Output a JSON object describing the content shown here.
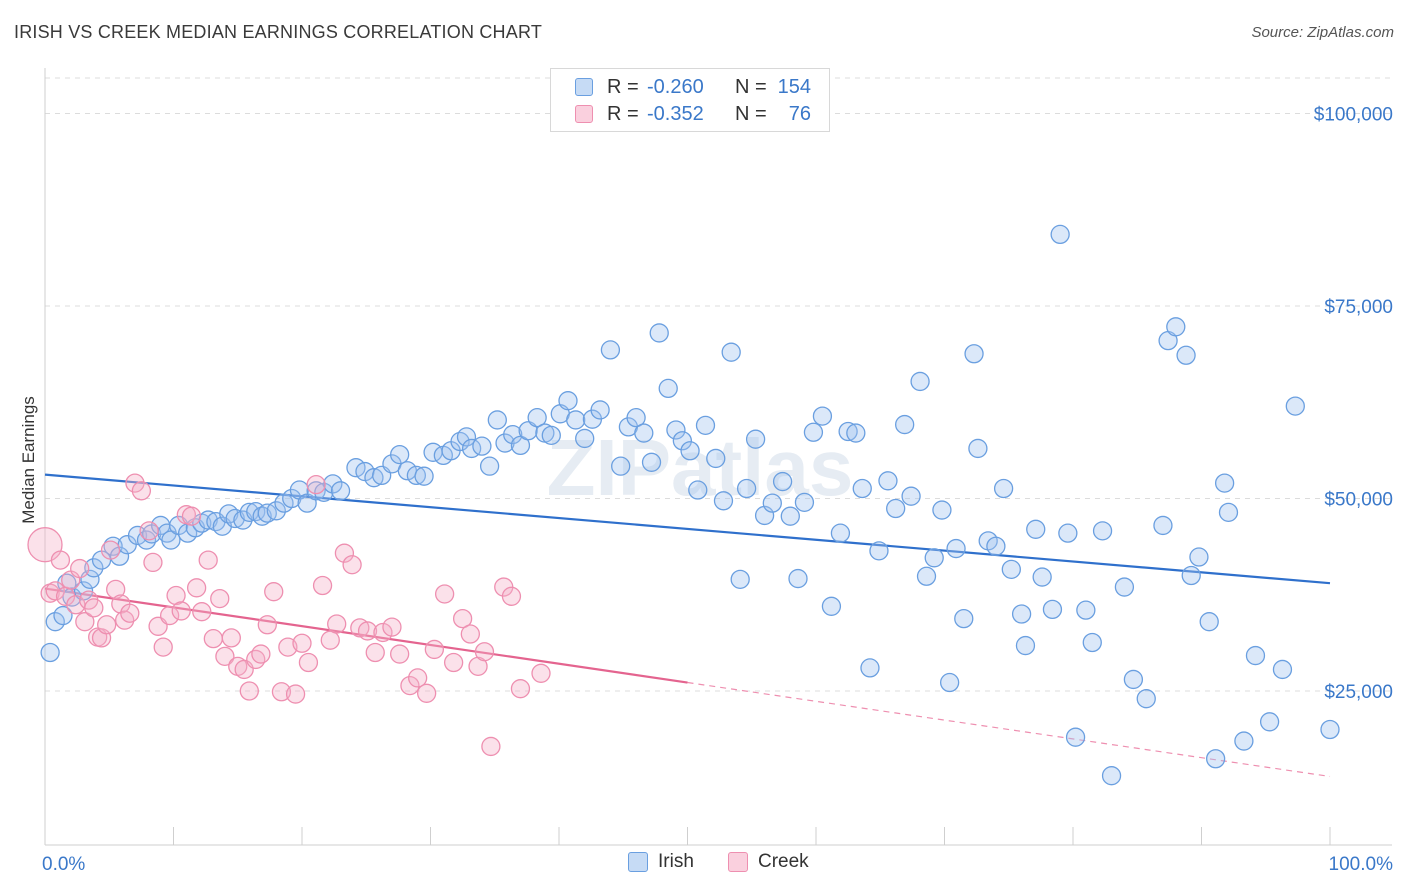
{
  "header": {
    "title": "IRISH VS CREEK MEDIAN EARNINGS CORRELATION CHART",
    "source": "Source: ZipAtlas.com"
  },
  "watermark": "ZIPatlas",
  "legend": {
    "rows": [
      {
        "r_label": "R =",
        "r_value": "-0.260",
        "n_label": "N =",
        "n_value": "154",
        "color": "#6a9fe0"
      },
      {
        "r_label": "R =",
        "r_value": "-0.352",
        "n_label": "N =",
        "n_value": "76",
        "color": "#ee8fb0"
      }
    ]
  },
  "bottom_legend": [
    {
      "label": "Irish",
      "color": "#6a9fe0"
    },
    {
      "label": "Creek",
      "color": "#ee8fb0"
    }
  ],
  "chart_data": {
    "type": "scatter",
    "title": "IRISH VS CREEK MEDIAN EARNINGS CORRELATION CHART",
    "ylabel": "Median Earnings",
    "xlabel": "",
    "xlim": [
      0,
      100
    ],
    "ylim": [
      5000,
      105000
    ],
    "x_tick_labels": [
      "0.0%",
      "100.0%"
    ],
    "y_ticks": [
      {
        "value": 25000,
        "label": "$25,000"
      },
      {
        "value": 50000,
        "label": "$50,000"
      },
      {
        "value": 75000,
        "label": "$75,000"
      },
      {
        "value": 100000,
        "label": "$100,000"
      }
    ],
    "grid": true,
    "legend_position": "top-center",
    "series": [
      {
        "name": "Irish",
        "color": "#6a9fe0",
        "trend": {
          "x": [
            0,
            100
          ],
          "y": [
            53100,
            39000
          ],
          "dashed_from": null
        },
        "points": [
          [
            0.4,
            30000
          ],
          [
            0.8,
            34000
          ],
          [
            1.4,
            34800
          ],
          [
            1.7,
            39000
          ],
          [
            2.1,
            37200
          ],
          [
            3.0,
            38000
          ],
          [
            3.5,
            39500
          ],
          [
            3.8,
            41000
          ],
          [
            4.4,
            42000
          ],
          [
            5.3,
            43800
          ],
          [
            5.8,
            42500
          ],
          [
            6.4,
            44000
          ],
          [
            7.2,
            45200
          ],
          [
            7.9,
            44600
          ],
          [
            8.3,
            45400
          ],
          [
            9.0,
            46500
          ],
          [
            9.5,
            45500
          ],
          [
            9.8,
            44600
          ],
          [
            10.4,
            46500
          ],
          [
            11.1,
            45500
          ],
          [
            11.7,
            46200
          ],
          [
            12.2,
            46800
          ],
          [
            12.7,
            47200
          ],
          [
            13.3,
            47000
          ],
          [
            13.8,
            46400
          ],
          [
            14.3,
            48000
          ],
          [
            14.8,
            47400
          ],
          [
            15.4,
            47200
          ],
          [
            15.9,
            48200
          ],
          [
            16.4,
            48300
          ],
          [
            16.9,
            47700
          ],
          [
            17.3,
            48100
          ],
          [
            18.0,
            48400
          ],
          [
            18.6,
            49400
          ],
          [
            19.2,
            50000
          ],
          [
            19.8,
            51100
          ],
          [
            20.4,
            49400
          ],
          [
            21.1,
            51000
          ],
          [
            21.7,
            50800
          ],
          [
            22.4,
            51900
          ],
          [
            23.0,
            51000
          ],
          [
            24.2,
            54000
          ],
          [
            24.9,
            53500
          ],
          [
            25.6,
            52700
          ],
          [
            26.2,
            53000
          ],
          [
            27.0,
            54500
          ],
          [
            27.6,
            55700
          ],
          [
            28.2,
            53600
          ],
          [
            28.9,
            53000
          ],
          [
            29.5,
            52900
          ],
          [
            30.2,
            56000
          ],
          [
            31.0,
            55600
          ],
          [
            31.6,
            56200
          ],
          [
            32.3,
            57400
          ],
          [
            32.8,
            58000
          ],
          [
            33.2,
            56500
          ],
          [
            34.0,
            56800
          ],
          [
            34.6,
            54200
          ],
          [
            35.2,
            60200
          ],
          [
            35.8,
            57200
          ],
          [
            36.4,
            58300
          ],
          [
            37.0,
            56900
          ],
          [
            37.6,
            58800
          ],
          [
            38.3,
            60500
          ],
          [
            38.9,
            58500
          ],
          [
            39.4,
            58200
          ],
          [
            40.1,
            61000
          ],
          [
            40.7,
            62700
          ],
          [
            41.3,
            60200
          ],
          [
            42.0,
            57800
          ],
          [
            42.6,
            60300
          ],
          [
            43.2,
            61500
          ],
          [
            44.0,
            69300
          ],
          [
            44.8,
            54200
          ],
          [
            45.4,
            59300
          ],
          [
            46.0,
            60500
          ],
          [
            46.6,
            58500
          ],
          [
            47.2,
            54700
          ],
          [
            47.8,
            71500
          ],
          [
            48.5,
            64300
          ],
          [
            49.1,
            58900
          ],
          [
            49.6,
            57500
          ],
          [
            50.2,
            56200
          ],
          [
            50.8,
            51100
          ],
          [
            51.4,
            59500
          ],
          [
            52.2,
            55200
          ],
          [
            52.8,
            49700
          ],
          [
            53.4,
            69000
          ],
          [
            54.1,
            39500
          ],
          [
            54.6,
            51300
          ],
          [
            55.3,
            57700
          ],
          [
            56.0,
            47800
          ],
          [
            56.6,
            49400
          ],
          [
            57.4,
            52200
          ],
          [
            58.0,
            47700
          ],
          [
            58.6,
            39600
          ],
          [
            59.1,
            49500
          ],
          [
            59.8,
            58600
          ],
          [
            60.5,
            60700
          ],
          [
            61.2,
            36000
          ],
          [
            61.9,
            45500
          ],
          [
            62.5,
            58700
          ],
          [
            63.1,
            58500
          ],
          [
            63.6,
            51300
          ],
          [
            64.2,
            28000
          ],
          [
            64.9,
            43200
          ],
          [
            65.6,
            52300
          ],
          [
            66.2,
            48700
          ],
          [
            66.9,
            59600
          ],
          [
            67.4,
            50300
          ],
          [
            68.1,
            65200
          ],
          [
            68.6,
            39900
          ],
          [
            69.2,
            42300
          ],
          [
            69.8,
            48500
          ],
          [
            70.4,
            26100
          ],
          [
            70.9,
            43500
          ],
          [
            71.5,
            34400
          ],
          [
            72.3,
            68800
          ],
          [
            72.6,
            56500
          ],
          [
            73.4,
            44500
          ],
          [
            74.0,
            43800
          ],
          [
            74.6,
            51300
          ],
          [
            75.2,
            40800
          ],
          [
            76.0,
            35000
          ],
          [
            76.3,
            30900
          ],
          [
            77.1,
            46000
          ],
          [
            77.6,
            39800
          ],
          [
            78.4,
            35600
          ],
          [
            79.0,
            84300
          ],
          [
            79.6,
            45500
          ],
          [
            80.2,
            19000
          ],
          [
            81.0,
            35500
          ],
          [
            81.5,
            31300
          ],
          [
            82.3,
            45800
          ],
          [
            83.0,
            14000
          ],
          [
            84.0,
            38500
          ],
          [
            84.7,
            26500
          ],
          [
            85.7,
            24000
          ],
          [
            87.0,
            46500
          ],
          [
            87.4,
            70500
          ],
          [
            88.0,
            72300
          ],
          [
            88.8,
            68600
          ],
          [
            89.2,
            40000
          ],
          [
            89.8,
            42400
          ],
          [
            90.6,
            34000
          ],
          [
            91.1,
            16200
          ],
          [
            91.8,
            52000
          ],
          [
            92.1,
            48200
          ],
          [
            93.3,
            18500
          ],
          [
            94.2,
            29600
          ],
          [
            95.3,
            21000
          ],
          [
            96.3,
            27800
          ],
          [
            97.3,
            62000
          ],
          [
            100.0,
            20000
          ]
        ]
      },
      {
        "name": "Creek",
        "color": "#ee8fb0",
        "trend": {
          "x": [
            0,
            100
          ],
          "y": [
            38300,
            13900
          ],
          "solid_to": 50
        },
        "points": [
          [
            0.0,
            44000
          ],
          [
            0.4,
            37700
          ],
          [
            0.8,
            38000
          ],
          [
            1.2,
            42000
          ],
          [
            1.6,
            37300
          ],
          [
            2.0,
            39400
          ],
          [
            2.4,
            36200
          ],
          [
            2.7,
            40900
          ],
          [
            3.1,
            34000
          ],
          [
            3.4,
            36800
          ],
          [
            3.8,
            35800
          ],
          [
            4.1,
            32000
          ],
          [
            4.4,
            31900
          ],
          [
            4.8,
            33600
          ],
          [
            5.1,
            43300
          ],
          [
            5.5,
            38200
          ],
          [
            5.9,
            36300
          ],
          [
            6.2,
            34200
          ],
          [
            6.6,
            35100
          ],
          [
            7.0,
            52000
          ],
          [
            7.5,
            51000
          ],
          [
            8.1,
            45800
          ],
          [
            8.4,
            41700
          ],
          [
            8.8,
            33400
          ],
          [
            9.2,
            30700
          ],
          [
            9.7,
            34800
          ],
          [
            10.2,
            37400
          ],
          [
            10.6,
            35400
          ],
          [
            11.0,
            47900
          ],
          [
            11.4,
            47700
          ],
          [
            11.8,
            38400
          ],
          [
            12.2,
            35300
          ],
          [
            12.7,
            42000
          ],
          [
            13.1,
            31800
          ],
          [
            13.6,
            37000
          ],
          [
            14.0,
            29500
          ],
          [
            14.5,
            31900
          ],
          [
            15.0,
            28200
          ],
          [
            15.5,
            27800
          ],
          [
            15.9,
            25000
          ],
          [
            16.4,
            29100
          ],
          [
            16.8,
            29800
          ],
          [
            17.3,
            33600
          ],
          [
            17.8,
            37900
          ],
          [
            18.4,
            24900
          ],
          [
            18.9,
            30700
          ],
          [
            19.5,
            24600
          ],
          [
            20.0,
            31200
          ],
          [
            20.5,
            28700
          ],
          [
            21.1,
            51800
          ],
          [
            21.6,
            38700
          ],
          [
            22.2,
            31600
          ],
          [
            22.7,
            33700
          ],
          [
            23.3,
            42900
          ],
          [
            23.9,
            41400
          ],
          [
            24.5,
            33200
          ],
          [
            25.1,
            32800
          ],
          [
            25.7,
            30000
          ],
          [
            26.3,
            32600
          ],
          [
            27.0,
            33300
          ],
          [
            27.6,
            29800
          ],
          [
            28.4,
            25700
          ],
          [
            29.0,
            26700
          ],
          [
            29.7,
            24700
          ],
          [
            30.3,
            30400
          ],
          [
            31.1,
            37600
          ],
          [
            31.8,
            28700
          ],
          [
            32.5,
            34400
          ],
          [
            33.1,
            32400
          ],
          [
            33.7,
            28200
          ],
          [
            34.2,
            30100
          ],
          [
            34.7,
            17800
          ],
          [
            35.7,
            38500
          ],
          [
            36.3,
            37300
          ],
          [
            37.0,
            25300
          ],
          [
            38.6,
            27300
          ]
        ]
      }
    ]
  }
}
